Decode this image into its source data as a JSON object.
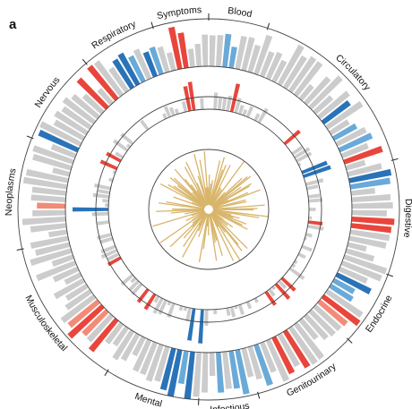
{
  "panel_label": "a",
  "colors": {
    "grey": "#cccccc",
    "red": "#e8463c",
    "light_red": "#f28b78",
    "blue": "#2a73b8",
    "light_blue": "#6aaad8",
    "gold": "#d8b56a",
    "ring_line": "#444444",
    "divider": "#222222"
  },
  "chart_data": {
    "type": "circular-bar",
    "title": "",
    "categories": [
      {
        "name": "Blood",
        "start_deg": 0,
        "end_deg": 18
      },
      {
        "name": "Circulatory",
        "start_deg": 18,
        "end_deg": 75
      },
      {
        "name": "Digestive",
        "start_deg": 75,
        "end_deg": 110
      },
      {
        "name": "Endocrine",
        "start_deg": 110,
        "end_deg": 133
      },
      {
        "name": "Genitourinary",
        "start_deg": 133,
        "end_deg": 165
      },
      {
        "name": "Infectious",
        "start_deg": 165,
        "end_deg": 183
      },
      {
        "name": "Mental",
        "start_deg": 183,
        "end_deg": 212
      },
      {
        "name": "Musculoskeletal",
        "start_deg": 212,
        "end_deg": 258
      },
      {
        "name": "Neoplasms",
        "start_deg": 258,
        "end_deg": 292
      },
      {
        "name": "Nervous",
        "start_deg": 292,
        "end_deg": 320
      },
      {
        "name": "Respiratory",
        "start_deg": 320,
        "end_deg": 343
      },
      {
        "name": "Symptoms",
        "start_deg": 343,
        "end_deg": 360
      }
    ],
    "outer_ring": {
      "n_bars": 140,
      "highlighted": [
        {
          "index": 2,
          "color": "light_blue",
          "value": 0.7
        },
        {
          "index": 3,
          "color": "light_blue",
          "value": 0.45
        },
        {
          "index": 20,
          "color": "blue",
          "value": 0.7
        },
        {
          "index": 23,
          "color": "light_blue",
          "value": 0.55
        },
        {
          "index": 25,
          "color": "light_blue",
          "value": 0.75
        },
        {
          "index": 27,
          "color": "red",
          "value": 0.85
        },
        {
          "index": 30,
          "color": "blue",
          "value": 0.9
        },
        {
          "index": 31,
          "color": "light_blue",
          "value": 0.85
        },
        {
          "index": 36,
          "color": "red",
          "value": 0.9
        },
        {
          "index": 37,
          "color": "red",
          "value": 0.85
        },
        {
          "index": 45,
          "color": "blue",
          "value": 0.8
        },
        {
          "index": 46,
          "color": "light_blue",
          "value": 0.5
        },
        {
          "index": 47,
          "color": "light_blue",
          "value": 0.55
        },
        {
          "index": 49,
          "color": "red",
          "value": 0.95
        },
        {
          "index": 50,
          "color": "light_red",
          "value": 0.75
        },
        {
          "index": 57,
          "color": "red",
          "value": 0.9
        },
        {
          "index": 59,
          "color": "red",
          "value": 0.85
        },
        {
          "index": 62,
          "color": "light_blue",
          "value": 0.9
        },
        {
          "index": 65,
          "color": "light_blue",
          "value": 0.95
        },
        {
          "index": 66,
          "color": "light_blue",
          "value": 0.8
        },
        {
          "index": 68,
          "color": "light_blue",
          "value": 0.85
        },
        {
          "index": 72,
          "color": "blue",
          "value": 1.0
        },
        {
          "index": 73,
          "color": "light_blue",
          "value": 0.7
        },
        {
          "index": 74,
          "color": "blue",
          "value": 1.0
        },
        {
          "index": 75,
          "color": "blue",
          "value": 0.9
        },
        {
          "index": 85,
          "color": "red",
          "value": 0.85
        },
        {
          "index": 87,
          "color": "light_red",
          "value": 0.7
        },
        {
          "index": 88,
          "color": "red",
          "value": 0.95
        },
        {
          "index": 89,
          "color": "light_red",
          "value": 0.8
        },
        {
          "index": 105,
          "color": "light_red",
          "value": 0.6
        },
        {
          "index": 114,
          "color": "blue",
          "value": 0.9
        },
        {
          "index": 122,
          "color": "red",
          "value": 0.85
        },
        {
          "index": 124,
          "color": "red",
          "value": 0.9
        },
        {
          "index": 127,
          "color": "blue",
          "value": 0.7
        },
        {
          "index": 128,
          "color": "blue",
          "value": 0.75
        },
        {
          "index": 129,
          "color": "light_blue",
          "value": 0.6
        },
        {
          "index": 131,
          "color": "blue",
          "value": 0.55
        },
        {
          "index": 132,
          "color": "light_blue",
          "value": 0.6
        },
        {
          "index": 135,
          "color": "red",
          "value": 0.9
        },
        {
          "index": 136,
          "color": "red",
          "value": 0.75
        }
      ]
    },
    "middle_ring": {
      "n_bars": 150,
      "highlighted": [
        {
          "index": 5,
          "color": "red",
          "value": 0.8
        },
        {
          "index": 20,
          "color": "red",
          "value": 0.55
        },
        {
          "index": 28,
          "color": "blue",
          "value": 0.75
        },
        {
          "index": 29,
          "color": "blue",
          "value": 0.8
        },
        {
          "index": 40,
          "color": "red",
          "value": 0.4
        },
        {
          "index": 55,
          "color": "red",
          "value": 0.5
        },
        {
          "index": 57,
          "color": "red",
          "value": 0.55
        },
        {
          "index": 60,
          "color": "red",
          "value": 0.45
        },
        {
          "index": 76,
          "color": "blue",
          "value": 0.95
        },
        {
          "index": 78,
          "color": "blue",
          "value": 0.9
        },
        {
          "index": 88,
          "color": "red",
          "value": 0.5
        },
        {
          "index": 90,
          "color": "red",
          "value": 0.45
        },
        {
          "index": 100,
          "color": "red",
          "value": 0.4
        },
        {
          "index": 112,
          "color": "blue",
          "value": 1.0
        },
        {
          "index": 122,
          "color": "red",
          "value": 0.5
        },
        {
          "index": 124,
          "color": "red",
          "value": 0.45
        },
        {
          "index": 145,
          "color": "red",
          "value": 0.7
        },
        {
          "index": 146,
          "color": "red",
          "value": 0.8
        }
      ]
    },
    "inner_ring": {
      "n_spikes": 120,
      "color": "gold"
    }
  }
}
